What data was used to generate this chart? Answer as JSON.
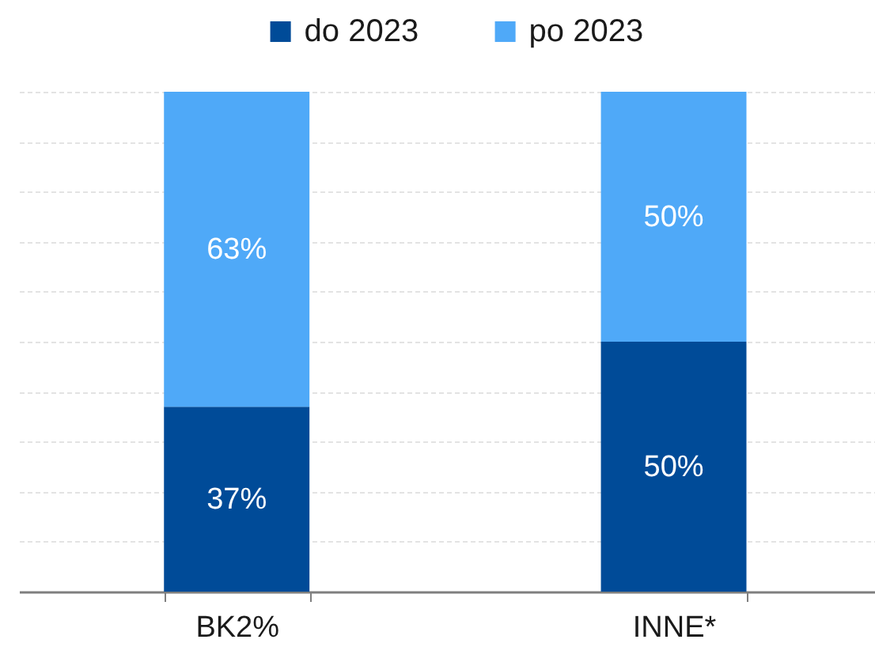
{
  "chart_data": {
    "type": "bar",
    "stacked": true,
    "categories": [
      "BK2%",
      "INNE*"
    ],
    "series": [
      {
        "name": "do 2023",
        "color": "#004b98",
        "values": [
          37,
          50
        ],
        "value_labels": [
          "37%",
          "50%"
        ]
      },
      {
        "name": "po 2023",
        "color": "#4fa9f8",
        "values": [
          63,
          50
        ],
        "value_labels": [
          "63%",
          "50%"
        ]
      }
    ],
    "ylim": [
      0,
      100
    ],
    "yticks": [
      {
        "value": 0,
        "label": null
      },
      {
        "value": 10,
        "label": null
      },
      {
        "value": 20,
        "label": null
      },
      {
        "value": 30,
        "label": null
      },
      {
        "value": 40,
        "label": null
      },
      {
        "value": 50,
        "label": null
      },
      {
        "value": 60,
        "label": null
      },
      {
        "value": 70,
        "label": null
      },
      {
        "value": 80,
        "label": null
      },
      {
        "value": 90,
        "label": null
      },
      {
        "value": 100,
        "label": null
      }
    ],
    "grid": "y",
    "tick_labels": "x",
    "legend": "top"
  }
}
